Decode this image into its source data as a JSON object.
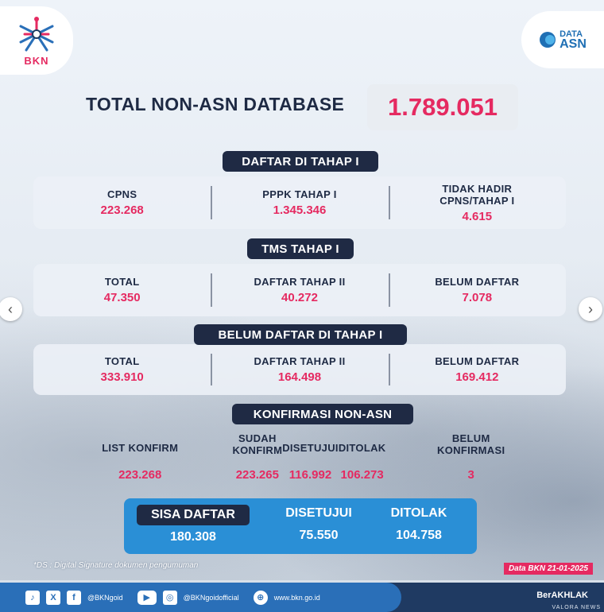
{
  "brand": {
    "bkn_label": "BKN",
    "data_asn_top": "DATA",
    "data_asn_bottom": "ASN",
    "accent_color": "#e52a61",
    "navy_color": "#1f2a44",
    "blue_color": "#2a8fd6"
  },
  "total": {
    "label": "TOTAL NON-ASN DATABASE",
    "value": "1.789.051"
  },
  "daftar_tahap_1": {
    "title": "DAFTAR DI TAHAP I",
    "items": [
      {
        "label": "CPNS",
        "value": "223.268"
      },
      {
        "label": "PPPK TAHAP I",
        "value": "1.345.346"
      },
      {
        "label": "TIDAK HADIR\nCPNS/TAHAP I",
        "value": "4.615"
      }
    ]
  },
  "tms_tahap_1": {
    "title": "TMS TAHAP I",
    "items": [
      {
        "label": "TOTAL",
        "value": "47.350"
      },
      {
        "label": "DAFTAR TAHAP II",
        "value": "40.272"
      },
      {
        "label": "BELUM DAFTAR",
        "value": "7.078"
      }
    ]
  },
  "belum_daftar_tahap_1": {
    "title": "BELUM DAFTAR DI TAHAP I",
    "items": [
      {
        "label": "TOTAL",
        "value": "333.910"
      },
      {
        "label": "DAFTAR TAHAP II",
        "value": "164.498"
      },
      {
        "label": "BELUM DAFTAR",
        "value": "169.412"
      }
    ]
  },
  "konfirmasi": {
    "title": "KONFIRMASI NON-ASN",
    "items": [
      {
        "label": "LIST KONFIRM",
        "value": "223.268"
      },
      {
        "label": "SUDAH\nKONFIRM",
        "value": "223.265"
      },
      {
        "label": "DISETUJUI",
        "value": "116.992"
      },
      {
        "label": "DITOLAK",
        "value": "106.273"
      },
      {
        "label": "BELUM\nKONFIRMASI",
        "value": "3"
      }
    ]
  },
  "sisa": {
    "title": "SISA DAFTAR",
    "value": "180.308",
    "disetujui_label": "DISETUJUI",
    "disetujui_value": "75.550",
    "ditolak_label": "DITOLAK",
    "ditolak_value": "104.758"
  },
  "notes": {
    "ds_note": "*DS : Digital Signature dokumen pengumuman",
    "data_date": "Data BKN 21-01-2025"
  },
  "footer": {
    "social_1": "@BKNgoid",
    "social_2": "@BKNgoidofficial",
    "website": "www.bkn.go.id",
    "berakhlak": "BerAKHLAK",
    "watermark": "VALORA NEWS"
  },
  "nav": {
    "prev_glyph": "‹",
    "next_glyph": "›"
  }
}
